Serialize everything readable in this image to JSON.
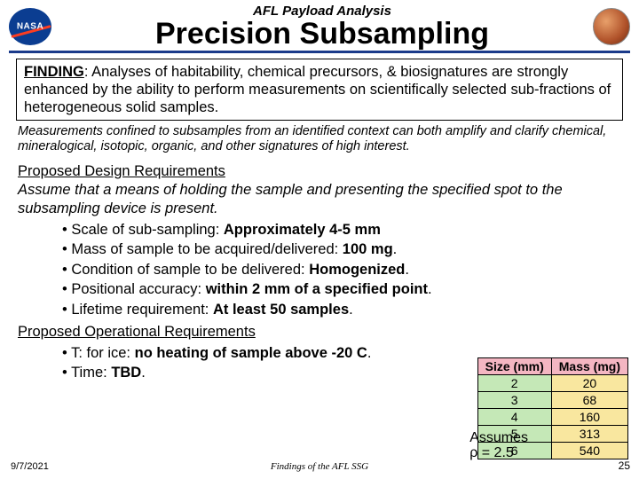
{
  "header": {
    "subtitle": "AFL Payload Analysis",
    "title": "Precision Subsampling"
  },
  "finding": {
    "label": "FINDING",
    "text": ":  Analyses of habitability, chemical precursors, & biosignatures are strongly enhanced by the ability to perform measurements on scientifically selected sub-fractions of heterogeneous solid samples."
  },
  "meas_note": "Measurements confined to subsamples from an identified context can both amplify and clarify chemical, mineralogical, isotopic, organic, and other signatures of high interest.",
  "design": {
    "heading": "Proposed Design Requirements",
    "assume": "Assume that a means of holding the sample and presenting the specified spot to the subsampling device is present.",
    "items": [
      {
        "label": "Scale of sub-sampling:  ",
        "value": "Approximately 4-5 mm"
      },
      {
        "label": "Mass of sample to be acquired/delivered:  ",
        "value": "100 mg",
        "suffix": "."
      },
      {
        "label": "Condition of sample to be delivered:  ",
        "value": "Homogenized",
        "suffix": "."
      },
      {
        "label": "Positional accuracy:  ",
        "value": "within 2 mm of a specified point",
        "suffix": "."
      },
      {
        "label": "Lifetime requirement:  ",
        "value": "At least 50 samples",
        "suffix": "."
      }
    ]
  },
  "operational": {
    "heading": "Proposed Operational Requirements",
    "items": [
      {
        "label": "T:  for ice: ",
        "value": "no heating of sample above -20 C",
        "suffix": "."
      },
      {
        "label": "Time:  ",
        "value": "TBD",
        "suffix": "."
      }
    ]
  },
  "table": {
    "headers": {
      "size": "Size (mm)",
      "mass": "Mass (mg)"
    },
    "rows": [
      {
        "size": "2",
        "mass": "20"
      },
      {
        "size": "3",
        "mass": "68"
      },
      {
        "size": "4",
        "mass": "160"
      },
      {
        "size": "5",
        "mass": "313"
      },
      {
        "size": "6",
        "mass": "540"
      }
    ]
  },
  "assumes": {
    "line1": "Assumes",
    "line2": "ρ = 2.5"
  },
  "footer": {
    "date": "9/7/2021",
    "center": "Findings of the AFL SSG",
    "page": "25"
  },
  "colors": {
    "rule": "#1a3a8a",
    "table_header_bg": "#f4b6c2",
    "table_size_bg": "#c5e8b7",
    "table_mass_bg": "#f9e79f"
  }
}
